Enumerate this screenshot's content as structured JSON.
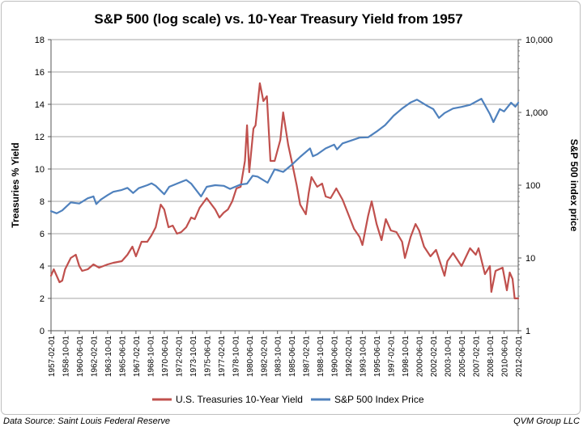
{
  "footer": {
    "source": "Data Source: Saint Louis Federal Reserve",
    "credit": "QVM Group LLC"
  },
  "colors": {
    "treasury": "#c0504d",
    "sp500": "#4f81bd",
    "grid": "#888888",
    "axis": "#555555"
  },
  "chart_data": {
    "type": "line",
    "title": "S&P 500 (log scale) vs. 10-Year Treasury Yield from 1957",
    "ylabel": "Treasuries % Yield",
    "y2label": "S&P 500 index price",
    "ylim": [
      0,
      18
    ],
    "yticks": [
      0,
      2,
      4,
      6,
      8,
      10,
      12,
      14,
      16,
      18
    ],
    "y2scale": "log",
    "y2lim": [
      1,
      10000
    ],
    "y2ticks": [
      1,
      10,
      100,
      1000,
      10000
    ],
    "y2ticklabels": [
      "1",
      "10",
      "100",
      "1,000",
      "10,000"
    ],
    "xlim": [
      "1957-02-01",
      "2012-02-01"
    ],
    "xticks": [
      "1957-02-01",
      "1958-10-01",
      "1960-06-01",
      "1962-02-01",
      "1963-10-01",
      "1965-06-01",
      "1967-02-01",
      "1968-10-01",
      "1970-06-01",
      "1972-02-01",
      "1973-10-01",
      "1975-06-01",
      "1977-02-01",
      "1978-10-01",
      "1980-06-01",
      "1982-02-01",
      "1983-10-01",
      "1985-06-01",
      "1987-02-01",
      "1988-10-01",
      "1990-06-01",
      "1992-02-01",
      "1993-10-01",
      "1995-06-01",
      "1997-02-01",
      "1998-10-01",
      "2000-06-01",
      "2002-02-01",
      "2003-10-01",
      "2005-06-01",
      "2007-02-01",
      "2008-10-01",
      "2010-06-01",
      "2012-02-01"
    ],
    "grid": true,
    "legend": "bottom",
    "series": [
      {
        "name": "U.S. Treasuries 10-Year Yield",
        "axis": "left",
        "x": [
          "1957-02-01",
          "1957-06-01",
          "1958-02-01",
          "1958-06-01",
          "1958-10-01",
          "1959-06-01",
          "1960-01-01",
          "1960-06-01",
          "1960-10-01",
          "1961-06-01",
          "1962-02-01",
          "1962-10-01",
          "1963-10-01",
          "1964-06-01",
          "1965-06-01",
          "1966-02-01",
          "1966-09-01",
          "1967-02-01",
          "1967-10-01",
          "1968-06-01",
          "1968-12-01",
          "1969-06-01",
          "1970-01-01",
          "1970-06-01",
          "1970-12-01",
          "1971-06-01",
          "1971-12-01",
          "1972-06-01",
          "1973-01-01",
          "1973-08-01",
          "1974-01-01",
          "1974-08-01",
          "1975-06-01",
          "1976-06-01",
          "1976-12-01",
          "1977-06-01",
          "1977-12-01",
          "1978-06-01",
          "1978-12-01",
          "1979-06-01",
          "1979-12-01",
          "1980-03-01",
          "1980-06-01",
          "1980-12-01",
          "1981-03-01",
          "1981-09-01",
          "1982-02-01",
          "1982-07-01",
          "1982-12-01",
          "1983-06-01",
          "1984-02-01",
          "1984-06-01",
          "1985-01-01",
          "1985-06-01",
          "1986-01-01",
          "1986-06-01",
          "1987-02-01",
          "1987-06-01",
          "1987-10-01",
          "1988-06-01",
          "1989-01-01",
          "1989-06-01",
          "1990-01-01",
          "1990-09-01",
          "1991-06-01",
          "1992-02-01",
          "1992-10-01",
          "1993-06-01",
          "1993-10-01",
          "1994-06-01",
          "1994-11-01",
          "1995-06-01",
          "1996-01-01",
          "1996-07-01",
          "1997-02-01",
          "1997-10-01",
          "1998-06-01",
          "1998-10-01",
          "1999-06-01",
          "2000-01-01",
          "2000-06-01",
          "2001-01-01",
          "2001-10-01",
          "2002-06-01",
          "2003-06-01",
          "2003-10-01",
          "2004-06-01",
          "2005-06-01",
          "2006-06-01",
          "2007-02-01",
          "2007-06-01",
          "2008-03-01",
          "2008-10-01",
          "2008-12-01",
          "2009-06-01",
          "2010-04-01",
          "2010-10-01",
          "2011-02-01",
          "2011-06-01",
          "2011-09-01",
          "2012-02-01"
        ],
        "values": [
          3.4,
          3.8,
          3.0,
          3.1,
          3.8,
          4.5,
          4.7,
          4.0,
          3.7,
          3.8,
          4.1,
          3.9,
          4.1,
          4.2,
          4.3,
          4.7,
          5.2,
          4.6,
          5.5,
          5.5,
          5.9,
          6.4,
          7.8,
          7.5,
          6.4,
          6.5,
          6.0,
          6.1,
          6.4,
          7.0,
          6.9,
          7.6,
          8.2,
          7.5,
          7.0,
          7.3,
          7.5,
          8.0,
          8.8,
          8.9,
          10.5,
          12.7,
          9.8,
          12.5,
          12.7,
          15.3,
          14.2,
          14.5,
          10.5,
          10.5,
          11.8,
          13.5,
          11.5,
          10.5,
          9.0,
          7.8,
          7.2,
          8.5,
          9.5,
          8.9,
          9.1,
          8.3,
          8.2,
          8.8,
          8.1,
          7.2,
          6.3,
          5.8,
          5.3,
          7.1,
          8.0,
          6.6,
          5.6,
          6.9,
          6.2,
          6.1,
          5.5,
          4.5,
          5.8,
          6.6,
          6.2,
          5.2,
          4.6,
          5.0,
          3.4,
          4.3,
          4.8,
          4.0,
          5.1,
          4.7,
          5.1,
          3.5,
          4.0,
          2.4,
          3.7,
          3.9,
          2.5,
          3.6,
          3.2,
          2.0,
          2.0
        ]
      },
      {
        "name": "S&P 500 Index Price",
        "axis": "right",
        "x": [
          "1957-02-01",
          "1957-10-01",
          "1958-06-01",
          "1959-06-01",
          "1960-06-01",
          "1961-06-01",
          "1962-02-01",
          "1962-06-01",
          "1962-12-01",
          "1963-10-01",
          "1964-06-01",
          "1965-06-01",
          "1966-02-01",
          "1966-10-01",
          "1967-06-01",
          "1968-06-01",
          "1968-12-01",
          "1969-06-01",
          "1970-06-01",
          "1971-01-01",
          "1972-02-01",
          "1973-01-01",
          "1973-08-01",
          "1974-10-01",
          "1975-06-01",
          "1976-06-01",
          "1977-06-01",
          "1978-03-01",
          "1979-06-01",
          "1980-03-01",
          "1980-11-01",
          "1981-06-01",
          "1982-08-01",
          "1983-06-01",
          "1984-06-01",
          "1985-06-01",
          "1986-06-01",
          "1987-08-01",
          "1987-12-01",
          "1988-06-01",
          "1989-06-01",
          "1990-06-01",
          "1990-10-01",
          "1991-06-01",
          "1992-06-01",
          "1993-06-01",
          "1994-06-01",
          "1995-06-01",
          "1996-06-01",
          "1997-06-01",
          "1998-06-01",
          "1999-06-01",
          "2000-03-01",
          "2001-06-01",
          "2002-02-01",
          "2002-10-01",
          "2003-06-01",
          "2004-06-01",
          "2005-06-01",
          "2006-06-01",
          "2007-10-01",
          "2008-10-01",
          "2009-03-01",
          "2009-12-01",
          "2010-06-01",
          "2011-04-01",
          "2011-10-01",
          "2012-02-01"
        ],
        "values": [
          44,
          41,
          45,
          58,
          56,
          66,
          70,
          55,
          63,
          73,
          81,
          86,
          92,
          78,
          91,
          100,
          106,
          98,
          75,
          95,
          107,
          118,
          105,
          70,
          95,
          100,
          98,
          89,
          102,
          105,
          135,
          131,
          108,
          165,
          152,
          190,
          245,
          320,
          250,
          265,
          320,
          360,
          310,
          375,
          410,
          450,
          455,
          545,
          670,
          900,
          1130,
          1370,
          1500,
          1220,
          1110,
          840,
          980,
          1130,
          1190,
          1270,
          1540,
          950,
          735,
          1110,
          1030,
          1360,
          1200,
          1360
        ]
      }
    ]
  }
}
